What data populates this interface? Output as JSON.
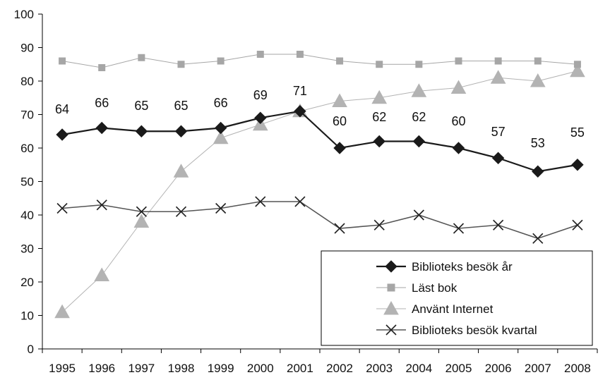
{
  "chart_data": {
    "type": "line",
    "title": "",
    "xlabel": "",
    "ylabel": "",
    "ylim": [
      0,
      100
    ],
    "yticks": [
      0,
      10,
      20,
      30,
      40,
      50,
      60,
      70,
      80,
      90,
      100
    ],
    "categories": [
      "1995",
      "1996",
      "1997",
      "1998",
      "1999",
      "2000",
      "2001",
      "2002",
      "2003",
      "2004",
      "2005",
      "2006",
      "2007",
      "2008"
    ],
    "grid": false,
    "legend_position": "bottom-right",
    "series": [
      {
        "name": "Biblioteks besök år",
        "values": [
          64,
          66,
          65,
          65,
          66,
          69,
          71,
          60,
          62,
          62,
          60,
          57,
          53,
          55
        ],
        "data_labels": [
          "64",
          "66",
          "65",
          "65",
          "66",
          "69",
          "71",
          "60",
          "62",
          "62",
          "60",
          "57",
          "53",
          "55"
        ],
        "marker": "diamond",
        "color": "#1a1a1a"
      },
      {
        "name": "Läst bok",
        "values": [
          86,
          84,
          87,
          85,
          86,
          88,
          88,
          86,
          85,
          85,
          86,
          86,
          86,
          85
        ],
        "marker": "square",
        "color": "#a6a6a6"
      },
      {
        "name": "Använt Internet",
        "values": [
          11,
          22,
          38,
          53,
          63,
          67,
          71,
          74,
          75,
          77,
          78,
          81,
          80,
          83
        ],
        "marker": "triangle",
        "color": "#b3b3b3"
      },
      {
        "name": "Biblioteks besök kvartal",
        "values": [
          42,
          43,
          41,
          41,
          42,
          44,
          44,
          36,
          37,
          40,
          36,
          37,
          33,
          37
        ],
        "marker": "x",
        "color": "#555555"
      }
    ]
  }
}
